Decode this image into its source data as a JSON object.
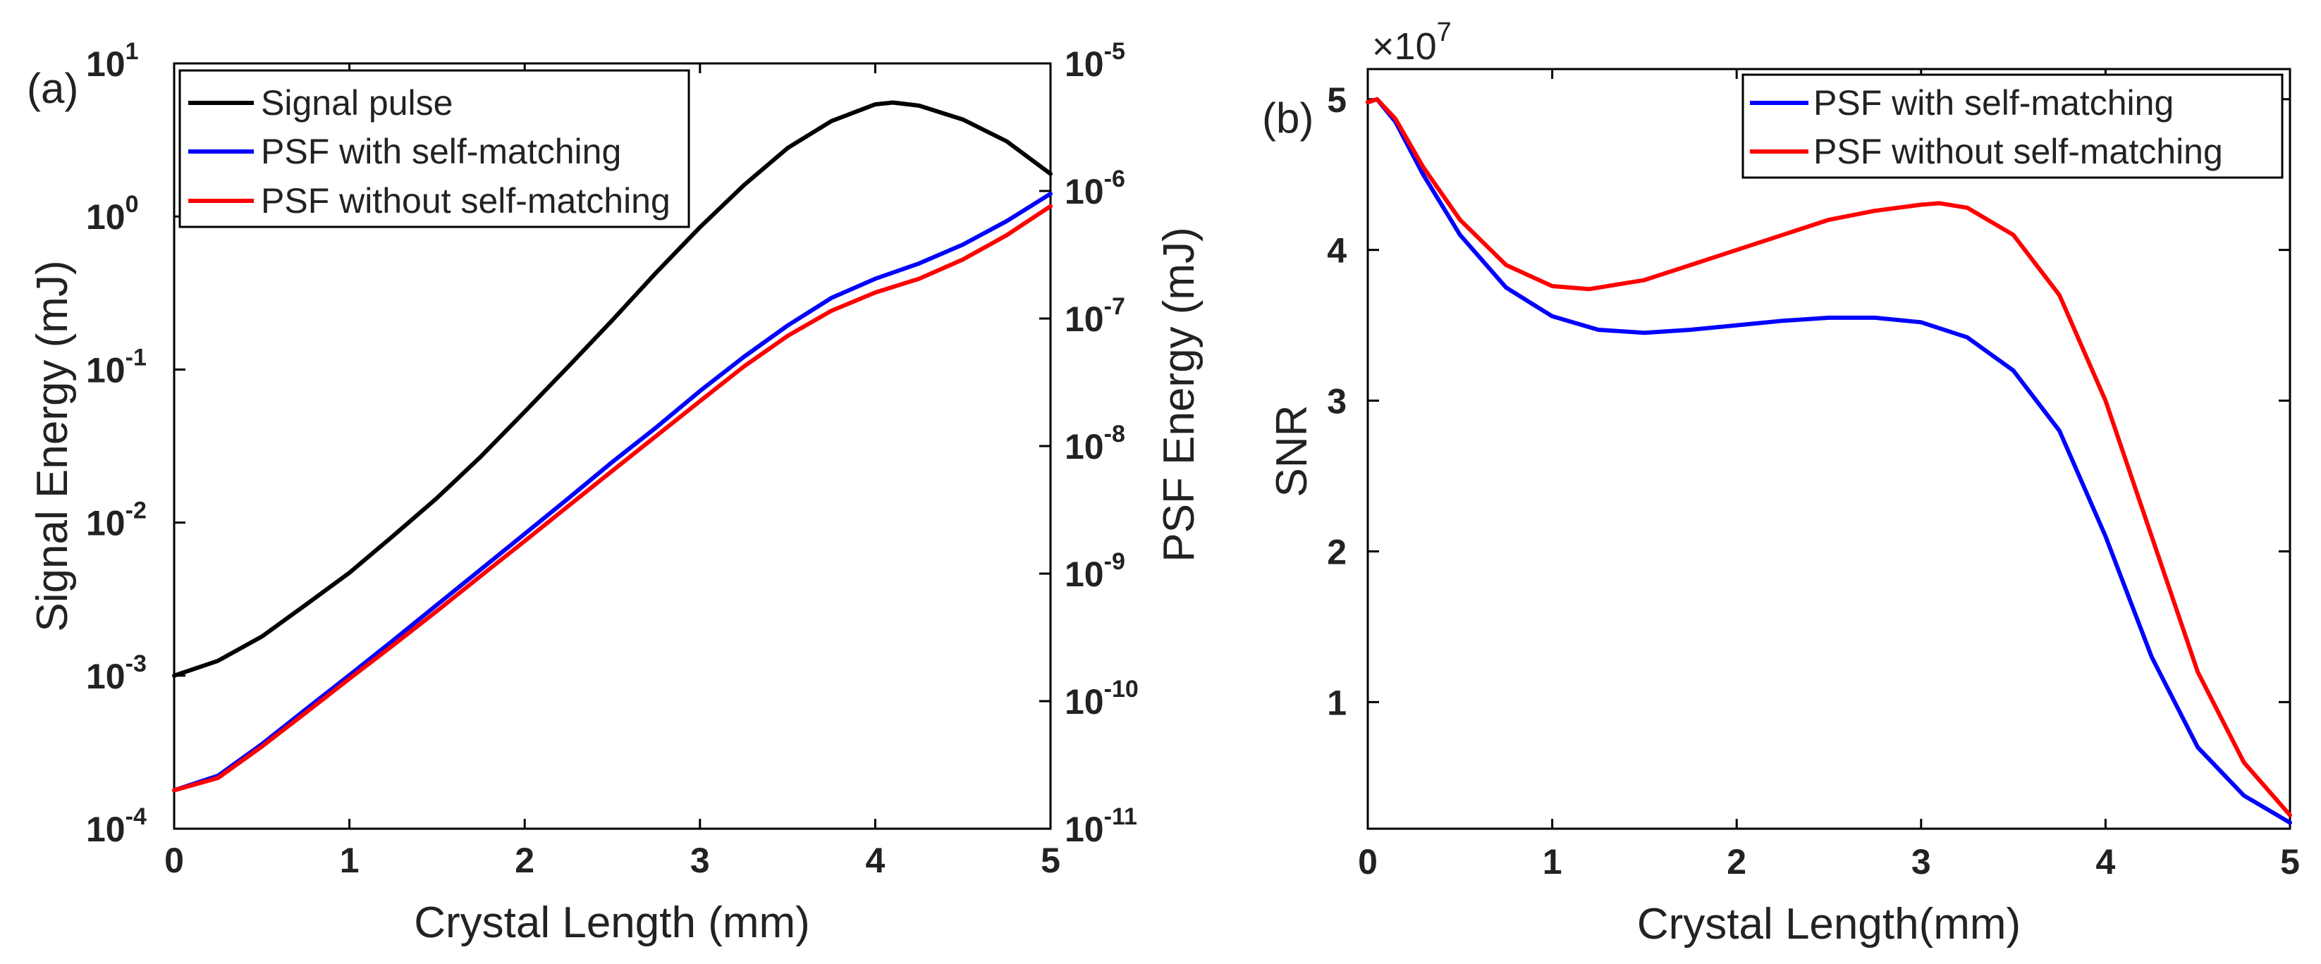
{
  "chart_data": [
    {
      "type": "line",
      "panel_label": "(a)",
      "xlabel": "Crystal Length (mm)",
      "ylabel_left": "Signal Energy (mJ)",
      "ylabel_right": "PSF Energy (mJ)",
      "xlim": [
        0,
        5
      ],
      "ylim_left": [
        0.0001,
        10
      ],
      "ylim_right": [
        1e-11,
        1e-05
      ],
      "yscale": "log",
      "x_ticks": [
        "0",
        "1",
        "2",
        "3",
        "4",
        "5"
      ],
      "y_ticks_left": [
        {
          "base": "10",
          "exp": "-4"
        },
        {
          "base": "10",
          "exp": "-3"
        },
        {
          "base": "10",
          "exp": "-2"
        },
        {
          "base": "10",
          "exp": "-1"
        },
        {
          "base": "10",
          "exp": "0"
        },
        {
          "base": "10",
          "exp": "1"
        }
      ],
      "y_ticks_right": [
        {
          "base": "10",
          "exp": "-11"
        },
        {
          "base": "10",
          "exp": "-10"
        },
        {
          "base": "10",
          "exp": "-9"
        },
        {
          "base": "10",
          "exp": "-8"
        },
        {
          "base": "10",
          "exp": "-7"
        },
        {
          "base": "10",
          "exp": "-6"
        },
        {
          "base": "10",
          "exp": "-5"
        }
      ],
      "legend_position": "top-left",
      "grid": false,
      "series": [
        {
          "name": "Signal pulse",
          "axis": "left",
          "color": "#000000",
          "x": [
            0,
            0.25,
            0.5,
            0.75,
            1,
            1.25,
            1.5,
            1.75,
            2,
            2.25,
            2.5,
            2.75,
            3,
            3.25,
            3.5,
            3.75,
            4,
            4.1,
            4.25,
            4.5,
            4.75,
            5
          ],
          "y": [
            0.001,
            0.00125,
            0.0018,
            0.0029,
            0.0047,
            0.0082,
            0.0145,
            0.027,
            0.053,
            0.105,
            0.21,
            0.43,
            0.85,
            1.6,
            2.8,
            4.2,
            5.4,
            5.55,
            5.3,
            4.3,
            3.1,
            1.9
          ]
        },
        {
          "name": "PSF with self-matching",
          "axis": "right",
          "color": "#0000ff",
          "x": [
            0,
            0.25,
            0.5,
            0.75,
            1,
            1.25,
            1.5,
            1.75,
            2,
            2.25,
            2.5,
            2.75,
            3,
            3.25,
            3.5,
            3.75,
            4,
            4.25,
            4.5,
            4.75,
            5
          ],
          "y": [
            2e-11,
            2.6e-11,
            4.6e-11,
            8.6e-11,
            1.6e-10,
            3e-10,
            5.7e-10,
            1.08e-09,
            2.05e-09,
            3.9e-09,
            7.5e-09,
            1.4e-08,
            2.7e-08,
            5e-08,
            8.8e-08,
            1.45e-07,
            2.05e-07,
            2.7e-07,
            3.8e-07,
            5.8e-07,
            9.5e-07
          ]
        },
        {
          "name": "PSF without self-matching",
          "axis": "right",
          "color": "#ff0000",
          "x": [
            0,
            0.25,
            0.5,
            0.75,
            1,
            1.25,
            1.5,
            1.75,
            2,
            2.25,
            2.5,
            2.75,
            3,
            3.25,
            3.5,
            3.75,
            4,
            4.25,
            4.5,
            4.75,
            5
          ],
          "y": [
            2e-11,
            2.5e-11,
            4.4e-11,
            8.1e-11,
            1.5e-10,
            2.75e-10,
            5.1e-10,
            9.6e-10,
            1.8e-09,
            3.4e-09,
            6.4e-09,
            1.2e-08,
            2.25e-08,
            4.2e-08,
            7.3e-08,
            1.15e-07,
            1.6e-07,
            2.05e-07,
            2.9e-07,
            4.5e-07,
            7.6e-07
          ]
        }
      ]
    },
    {
      "type": "line",
      "panel_label": "(b)",
      "xlabel": "Crystal Length(mm)",
      "ylabel": "SNR",
      "multiplier": {
        "base": "×10",
        "exp": "7"
      },
      "xlim": [
        0,
        5
      ],
      "ylim": [
        0.16,
        5.2
      ],
      "x_ticks": [
        "0",
        "1",
        "2",
        "3",
        "4",
        "5"
      ],
      "y_ticks": [
        "1",
        "2",
        "3",
        "4",
        "5"
      ],
      "legend_position": "top-right",
      "grid": false,
      "series": [
        {
          "name": "PSF with self-matching",
          "color": "#0000ff",
          "x": [
            0,
            0.05,
            0.15,
            0.3,
            0.5,
            0.75,
            1,
            1.25,
            1.5,
            1.75,
            2,
            2.25,
            2.5,
            2.75,
            3,
            3.25,
            3.5,
            3.75,
            4,
            4.25,
            4.5,
            4.75,
            5
          ],
          "y": [
            4.98,
            5.0,
            4.85,
            4.5,
            4.1,
            3.75,
            3.56,
            3.47,
            3.45,
            3.47,
            3.5,
            3.53,
            3.55,
            3.55,
            3.52,
            3.42,
            3.2,
            2.8,
            2.1,
            1.3,
            0.7,
            0.38,
            0.2
          ]
        },
        {
          "name": "PSF without self-matching",
          "color": "#ff0000",
          "x": [
            0,
            0.05,
            0.15,
            0.3,
            0.5,
            0.75,
            1,
            1.2,
            1.5,
            1.75,
            2,
            2.25,
            2.5,
            2.75,
            3,
            3.1,
            3.25,
            3.5,
            3.75,
            4,
            4.25,
            4.5,
            4.75,
            5
          ],
          "y": [
            4.98,
            5.0,
            4.87,
            4.55,
            4.2,
            3.9,
            3.76,
            3.74,
            3.8,
            3.9,
            4.0,
            4.1,
            4.2,
            4.26,
            4.3,
            4.31,
            4.28,
            4.1,
            3.7,
            3.0,
            2.1,
            1.2,
            0.6,
            0.25
          ]
        }
      ]
    }
  ]
}
